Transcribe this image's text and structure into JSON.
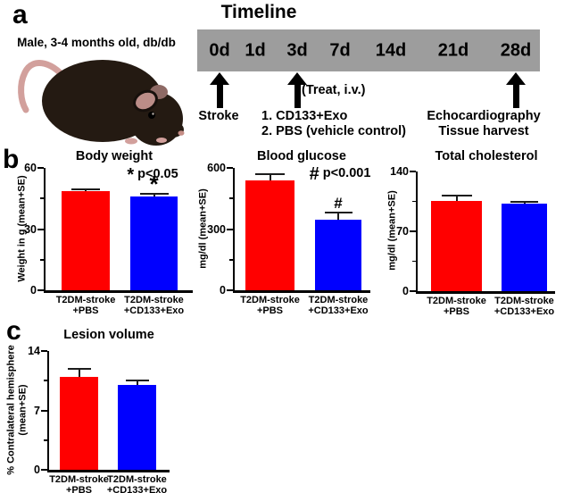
{
  "panels": {
    "a": {
      "label": "a",
      "mouse_caption": "Male, 3-4 months old, db/db",
      "timeline": {
        "title": "Timeline",
        "days": [
          "0d",
          "1d",
          "3d",
          "7d",
          "14d",
          "21d",
          "28d"
        ],
        "bar_color": "#9d9d9d",
        "stroke_label": "Stroke",
        "treat_note": "(Treat, i.v.)",
        "treat_items": [
          "1. CD133+Exo",
          "2. PBS (vehicle control)"
        ],
        "endpoint_lines": [
          "Echocardiography",
          "Tissue harvest"
        ]
      }
    },
    "b": {
      "label": "b"
    },
    "c": {
      "label": "c"
    }
  },
  "chart_data": [
    {
      "panel": "b",
      "type": "bar",
      "title": "Body weight",
      "ylabel": "Weight in g (mean+SE)",
      "categories": [
        [
          "T2DM-stroke",
          "+PBS"
        ],
        [
          "T2DM-stroke",
          "+CD133+Exo"
        ]
      ],
      "values": [
        48.5,
        46
      ],
      "errors": [
        1.2,
        1.5
      ],
      "colors": [
        "#ff0000",
        "#0000ff"
      ],
      "ylim": [
        0,
        60
      ],
      "yticks": [
        0,
        30,
        60
      ],
      "significance": {
        "symbol": "*",
        "label": "p<0.05",
        "marked_bar": 1
      }
    },
    {
      "panel": "b",
      "type": "bar",
      "title": "Blood glucose",
      "ylabel": "mg/dl (mean+SE)",
      "categories": [
        [
          "T2DM-stroke",
          "+PBS"
        ],
        [
          "T2DM-stroke",
          "+CD133+Exo"
        ]
      ],
      "values": [
        540,
        345
      ],
      "errors": [
        30,
        35
      ],
      "colors": [
        "#ff0000",
        "#0000ff"
      ],
      "ylim": [
        0,
        600
      ],
      "yticks": [
        0,
        300,
        600
      ],
      "significance": {
        "symbol": "#",
        "label": "p<0.001",
        "marked_bar": 1
      }
    },
    {
      "panel": "b",
      "type": "bar",
      "title": "Total cholesterol",
      "ylabel": "mg/dl (mean+SE)",
      "categories": [
        [
          "T2DM-stroke",
          "+PBS"
        ],
        [
          "T2DM-stroke",
          "+CD133+Exo"
        ]
      ],
      "values": [
        106,
        102
      ],
      "errors": [
        6,
        3
      ],
      "colors": [
        "#ff0000",
        "#0000ff"
      ],
      "ylim": [
        0,
        140
      ],
      "yticks": [
        0,
        70,
        140
      ],
      "significance": null
    },
    {
      "panel": "c",
      "type": "bar",
      "title": "Lesion volume",
      "ylabel": "% Contralateral hemisphere\n(mean+SE)",
      "categories": [
        [
          "T2DM-stroke",
          "+PBS"
        ],
        [
          "T2DM-stroke",
          "+CD133+Exo"
        ]
      ],
      "values": [
        10.9,
        10.0
      ],
      "errors": [
        1.0,
        0.5
      ],
      "colors": [
        "#ff0000",
        "#0000ff"
      ],
      "ylim": [
        0,
        14
      ],
      "yticks": [
        0,
        7,
        14
      ],
      "significance": null
    }
  ]
}
